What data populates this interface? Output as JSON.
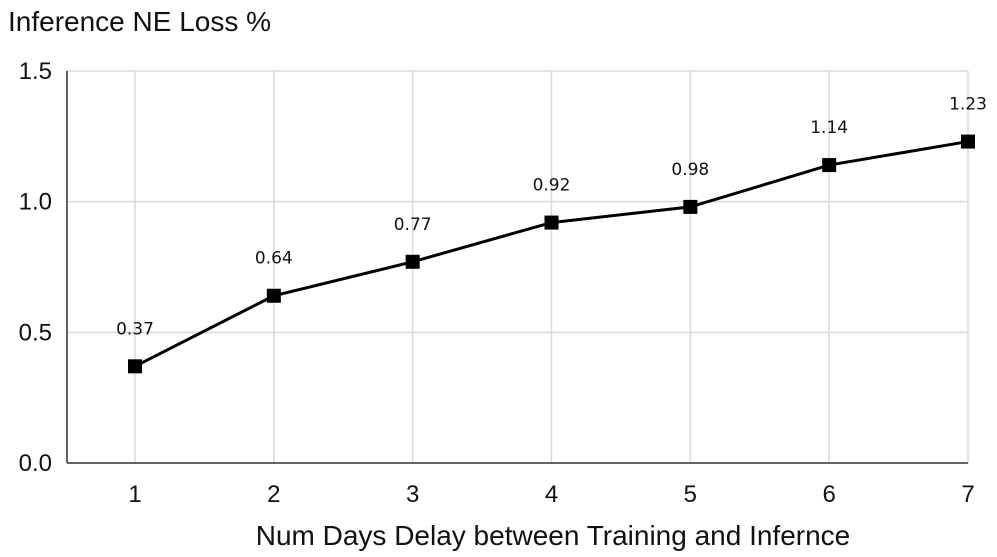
{
  "chart_data": {
    "type": "line",
    "title": "Inference NE Loss %",
    "xlabel": "Num Days Delay between Training and Infernce",
    "ylabel": "",
    "x": [
      1,
      2,
      3,
      4,
      5,
      6,
      7
    ],
    "x_tick_labels": [
      "1",
      "2",
      "3",
      "4",
      "5",
      "6",
      "7"
    ],
    "y_tick_values": [
      0.0,
      0.5,
      1.0,
      1.5
    ],
    "y_tick_labels": [
      "0.0",
      "0.5",
      "1.0",
      "1.5"
    ],
    "ylim": [
      0,
      1.5
    ],
    "grid": true,
    "series": [
      {
        "values": [
          0.37,
          0.64,
          0.77,
          0.92,
          0.98,
          1.14,
          1.23
        ],
        "data_labels": [
          "0.37",
          "0.64",
          "0.77",
          "0.92",
          "0.98",
          "1.14",
          "1.23"
        ],
        "color": "#000000",
        "marker": "square"
      }
    ]
  }
}
